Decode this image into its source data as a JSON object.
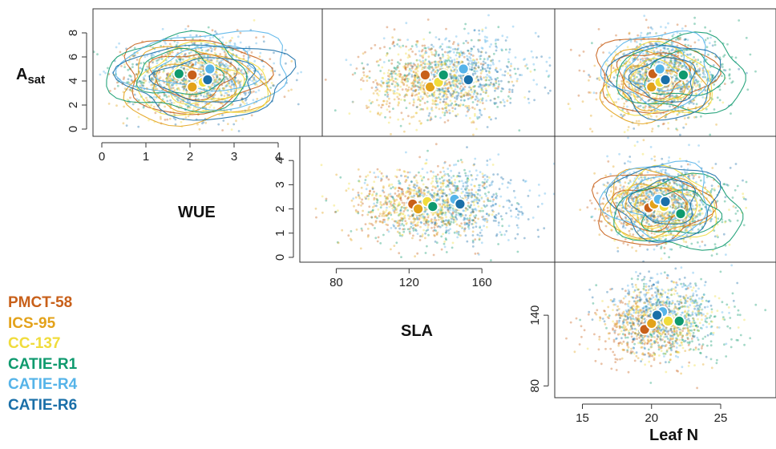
{
  "chart_data": {
    "type": "scatter",
    "variables": [
      "A_sat",
      "WUE",
      "SLA",
      "Leaf N"
    ],
    "labels": {
      "asat_main": "A",
      "asat_sub": "sat",
      "wue": "WUE",
      "sla": "SLA",
      "leafn": "Leaf N"
    },
    "series": [
      {
        "name": "PMCT-58",
        "color": "#c8601a"
      },
      {
        "name": "ICS-95",
        "color": "#e3a21a"
      },
      {
        "name": "CC-137",
        "color": "#f0dc3c"
      },
      {
        "name": "CATIE-R1",
        "color": "#0f9a6e"
      },
      {
        "name": "CATIE-R4",
        "color": "#56b4e9"
      },
      {
        "name": "CATIE-R6",
        "color": "#1a6fa8"
      }
    ],
    "panels": [
      {
        "id": "wue-asat",
        "x_var": "WUE",
        "y_var": "A_sat",
        "xlim": [
          -0.2,
          5.0
        ],
        "ylim": [
          -0.6,
          10.0
        ],
        "x_ticks": [
          "0",
          "1",
          "2",
          "3",
          "4"
        ],
        "y_ticks": [
          "0",
          "2",
          "4",
          "6",
          "8"
        ],
        "x_tick_values": [
          0,
          1,
          2,
          3,
          4
        ],
        "y_tick_values": [
          0,
          2,
          4,
          6,
          8
        ],
        "means": [
          [
            2.05,
            4.5
          ],
          [
            2.05,
            3.5
          ],
          [
            2.3,
            3.9
          ],
          [
            1.75,
            4.6
          ],
          [
            2.45,
            5.0
          ],
          [
            2.4,
            4.1
          ]
        ],
        "spread": [
          [
            0.75,
            1.6
          ],
          [
            0.75,
            1.6
          ],
          [
            0.7,
            1.5
          ],
          [
            0.75,
            1.6
          ],
          [
            0.9,
            1.6
          ],
          [
            0.9,
            1.6
          ]
        ],
        "contours": true
      },
      {
        "id": "sla-asat",
        "x_var": "SLA",
        "y_var": "A_sat",
        "xlim": [
          60,
          200
        ],
        "ylim": [
          -0.6,
          10.0
        ],
        "means": [
          [
            122,
            4.5
          ],
          [
            125,
            3.5
          ],
          [
            130,
            3.9
          ],
          [
            133,
            4.5
          ],
          [
            145,
            5.0
          ],
          [
            148,
            4.1
          ]
        ],
        "spread": [
          [
            20,
            1.6
          ],
          [
            20,
            1.5
          ],
          [
            20,
            1.5
          ],
          [
            22,
            1.6
          ],
          [
            22,
            1.6
          ],
          [
            22,
            1.6
          ]
        ],
        "contours": false
      },
      {
        "id": "leafn-asat",
        "x_var": "Leaf N",
        "y_var": "A_sat",
        "xlim": [
          13,
          29
        ],
        "ylim": [
          -0.6,
          10.0
        ],
        "means": [
          [
            20.1,
            4.6
          ],
          [
            20.0,
            3.5
          ],
          [
            20.6,
            3.9
          ],
          [
            22.3,
            4.5
          ],
          [
            20.6,
            5.0
          ],
          [
            21.0,
            4.1
          ]
        ],
        "spread": [
          [
            2.0,
            1.6
          ],
          [
            1.8,
            1.5
          ],
          [
            1.8,
            1.5
          ],
          [
            2.2,
            1.6
          ],
          [
            1.8,
            1.6
          ],
          [
            1.8,
            1.6
          ]
        ],
        "contours": true
      },
      {
        "id": "sla-wue",
        "x_var": "SLA",
        "y_var": "WUE",
        "xlim": [
          60,
          200
        ],
        "ylim": [
          -0.2,
          5.0
        ],
        "x_ticks": [
          "80",
          "120",
          "160"
        ],
        "y_ticks": [
          "0",
          "1",
          "2",
          "3",
          "4"
        ],
        "x_tick_values": [
          80,
          120,
          160
        ],
        "y_tick_values": [
          0,
          1,
          2,
          3,
          4
        ],
        "means": [
          [
            122,
            2.2
          ],
          [
            125,
            2.0
          ],
          [
            130,
            2.3
          ],
          [
            133,
            2.1
          ],
          [
            145,
            2.4
          ],
          [
            148,
            2.2
          ]
        ],
        "spread": [
          [
            18,
            0.75
          ],
          [
            18,
            0.7
          ],
          [
            18,
            0.7
          ],
          [
            20,
            0.75
          ],
          [
            20,
            0.8
          ],
          [
            20,
            0.8
          ]
        ],
        "contours": false
      },
      {
        "id": "leafn-wue",
        "x_var": "Leaf N",
        "y_var": "WUE",
        "xlim": [
          13,
          29
        ],
        "ylim": [
          -0.2,
          5.0
        ],
        "means": [
          [
            19.8,
            2.05
          ],
          [
            20.2,
            2.2
          ],
          [
            20.9,
            2.1
          ],
          [
            22.1,
            1.8
          ],
          [
            20.5,
            2.4
          ],
          [
            21.0,
            2.3
          ]
        ],
        "spread": [
          [
            2.0,
            0.75
          ],
          [
            1.8,
            0.7
          ],
          [
            1.8,
            0.75
          ],
          [
            2.2,
            0.75
          ],
          [
            1.8,
            0.8
          ],
          [
            1.8,
            0.8
          ]
        ],
        "contours": true
      },
      {
        "id": "leafn-sla",
        "x_var": "Leaf N",
        "y_var": "SLA",
        "xlim": [
          13,
          29
        ],
        "ylim": [
          70,
          185
        ],
        "x_ticks": [
          "15",
          "20",
          "25"
        ],
        "y_ticks": [
          "80",
          "140"
        ],
        "x_tick_values": [
          15,
          20,
          25
        ],
        "y_tick_values": [
          80,
          140
        ],
        "means": [
          [
            19.5,
            128
          ],
          [
            20.0,
            133
          ],
          [
            21.2,
            135
          ],
          [
            22.0,
            135
          ],
          [
            20.8,
            143
          ],
          [
            20.4,
            140
          ]
        ],
        "spread": [
          [
            2.0,
            16
          ],
          [
            1.8,
            15
          ],
          [
            1.8,
            15
          ],
          [
            2.2,
            16
          ],
          [
            1.8,
            16
          ],
          [
            1.8,
            16
          ]
        ],
        "contours": false
      }
    ]
  }
}
